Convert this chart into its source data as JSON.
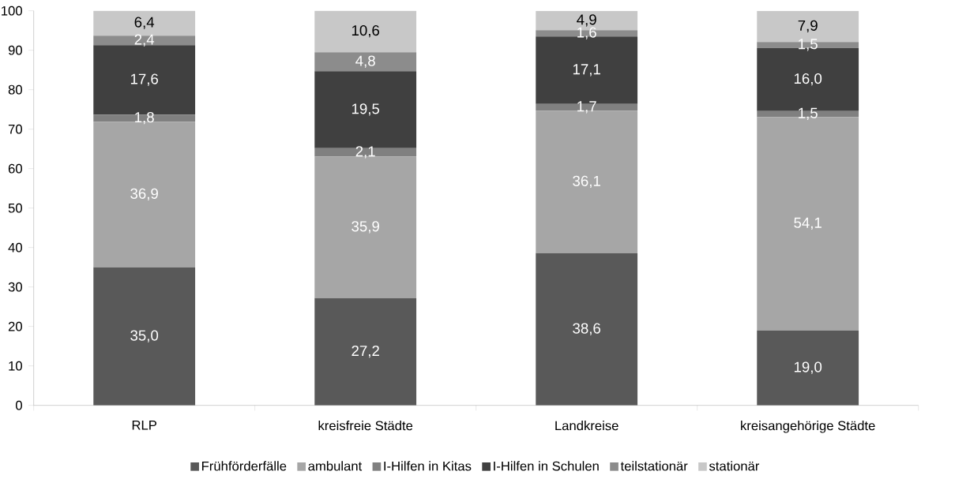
{
  "chart_data": {
    "type": "bar",
    "stacked": true,
    "categories": [
      "RLP",
      "kreisfreie Städte",
      "Landkreise",
      "kreisangehörige Städte"
    ],
    "series": [
      {
        "name": "Frühförderfälle",
        "color": "#595959",
        "values": [
          35.0,
          27.2,
          38.6,
          19.0
        ],
        "value_labels": [
          "35,0",
          "27,2",
          "38,6",
          "19,0"
        ]
      },
      {
        "name": "ambulant",
        "color": "#a6a6a6",
        "values": [
          36.9,
          35.9,
          36.1,
          54.1
        ],
        "value_labels": [
          "36,9",
          "35,9",
          "36,1",
          "54,1"
        ]
      },
      {
        "name": "I-Hilfen in Kitas",
        "color": "#808080",
        "values": [
          1.8,
          2.1,
          1.7,
          1.5
        ],
        "value_labels": [
          "1,8",
          "2,1",
          "1,7",
          "1,5"
        ]
      },
      {
        "name": "I-Hilfen in Schulen",
        "color": "#404040",
        "values": [
          17.6,
          19.5,
          17.1,
          16.0
        ],
        "value_labels": [
          "17,6",
          "19,5",
          "17,1",
          "16,0"
        ]
      },
      {
        "name": "teilstationär",
        "color": "#8c8c8c",
        "values": [
          2.4,
          4.8,
          1.6,
          1.5
        ],
        "value_labels": [
          "2,4",
          "4,8",
          "1,6",
          "1,5"
        ]
      },
      {
        "name": "stationär",
        "color": "#c8c8c8",
        "values": [
          6.4,
          10.6,
          4.9,
          7.9
        ],
        "value_labels": [
          "6,4",
          "10,6",
          "4,9",
          "7,9"
        ]
      }
    ],
    "ylim": [
      0,
      100
    ],
    "yticks": [
      0,
      10,
      20,
      30,
      40,
      50,
      60,
      70,
      80,
      90,
      100
    ],
    "grid": false,
    "legend": "bottom"
  }
}
